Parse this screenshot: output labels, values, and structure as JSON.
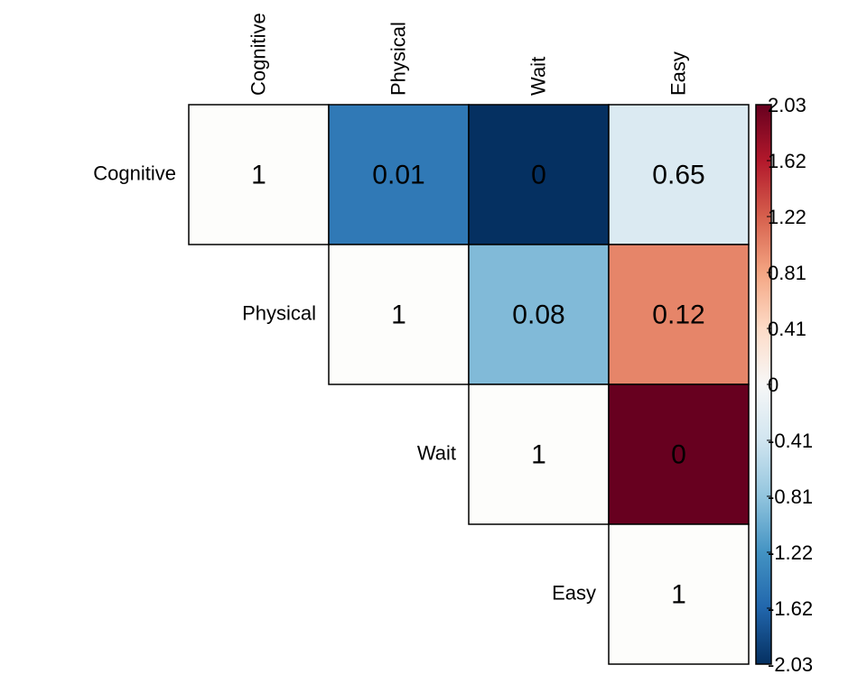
{
  "chart_data": {
    "type": "heatmap",
    "layout": "upper-triangle",
    "variables": [
      "Cognitive",
      "Physical",
      "Wait",
      "Easy"
    ],
    "cells": [
      {
        "row": "Cognitive",
        "col": "Cognitive",
        "label": "1",
        "color_value": 0
      },
      {
        "row": "Cognitive",
        "col": "Physical",
        "label": "0.01",
        "color_value": -1.45
      },
      {
        "row": "Cognitive",
        "col": "Wait",
        "label": "0",
        "color_value": -2.03
      },
      {
        "row": "Cognitive",
        "col": "Easy",
        "label": "0.65",
        "color_value": -0.3
      },
      {
        "row": "Physical",
        "col": "Physical",
        "label": "1",
        "color_value": 0
      },
      {
        "row": "Physical",
        "col": "Wait",
        "label": "0.08",
        "color_value": -0.9
      },
      {
        "row": "Physical",
        "col": "Easy",
        "label": "0.12",
        "color_value": 1.0
      },
      {
        "row": "Wait",
        "col": "Wait",
        "label": "1",
        "color_value": 0
      },
      {
        "row": "Wait",
        "col": "Easy",
        "label": "0",
        "color_value": 2.03
      },
      {
        "row": "Easy",
        "col": "Easy",
        "label": "1",
        "color_value": 0
      }
    ],
    "colorbar": {
      "min": -2.03,
      "max": 2.03,
      "ticks": [
        "2.03",
        "1.62",
        "1.22",
        "0.81",
        "0.41",
        "0",
        "-0.41",
        "-0.81",
        "-1.22",
        "-1.62",
        "-2.03"
      ],
      "colors": [
        "#053061",
        "#2166ac",
        "#4393c3",
        "#92c5de",
        "#d1e5f0",
        "#f7f7f7",
        "#fddbc7",
        "#f4a582",
        "#d6604d",
        "#b2182b",
        "#67001f"
      ]
    }
  }
}
